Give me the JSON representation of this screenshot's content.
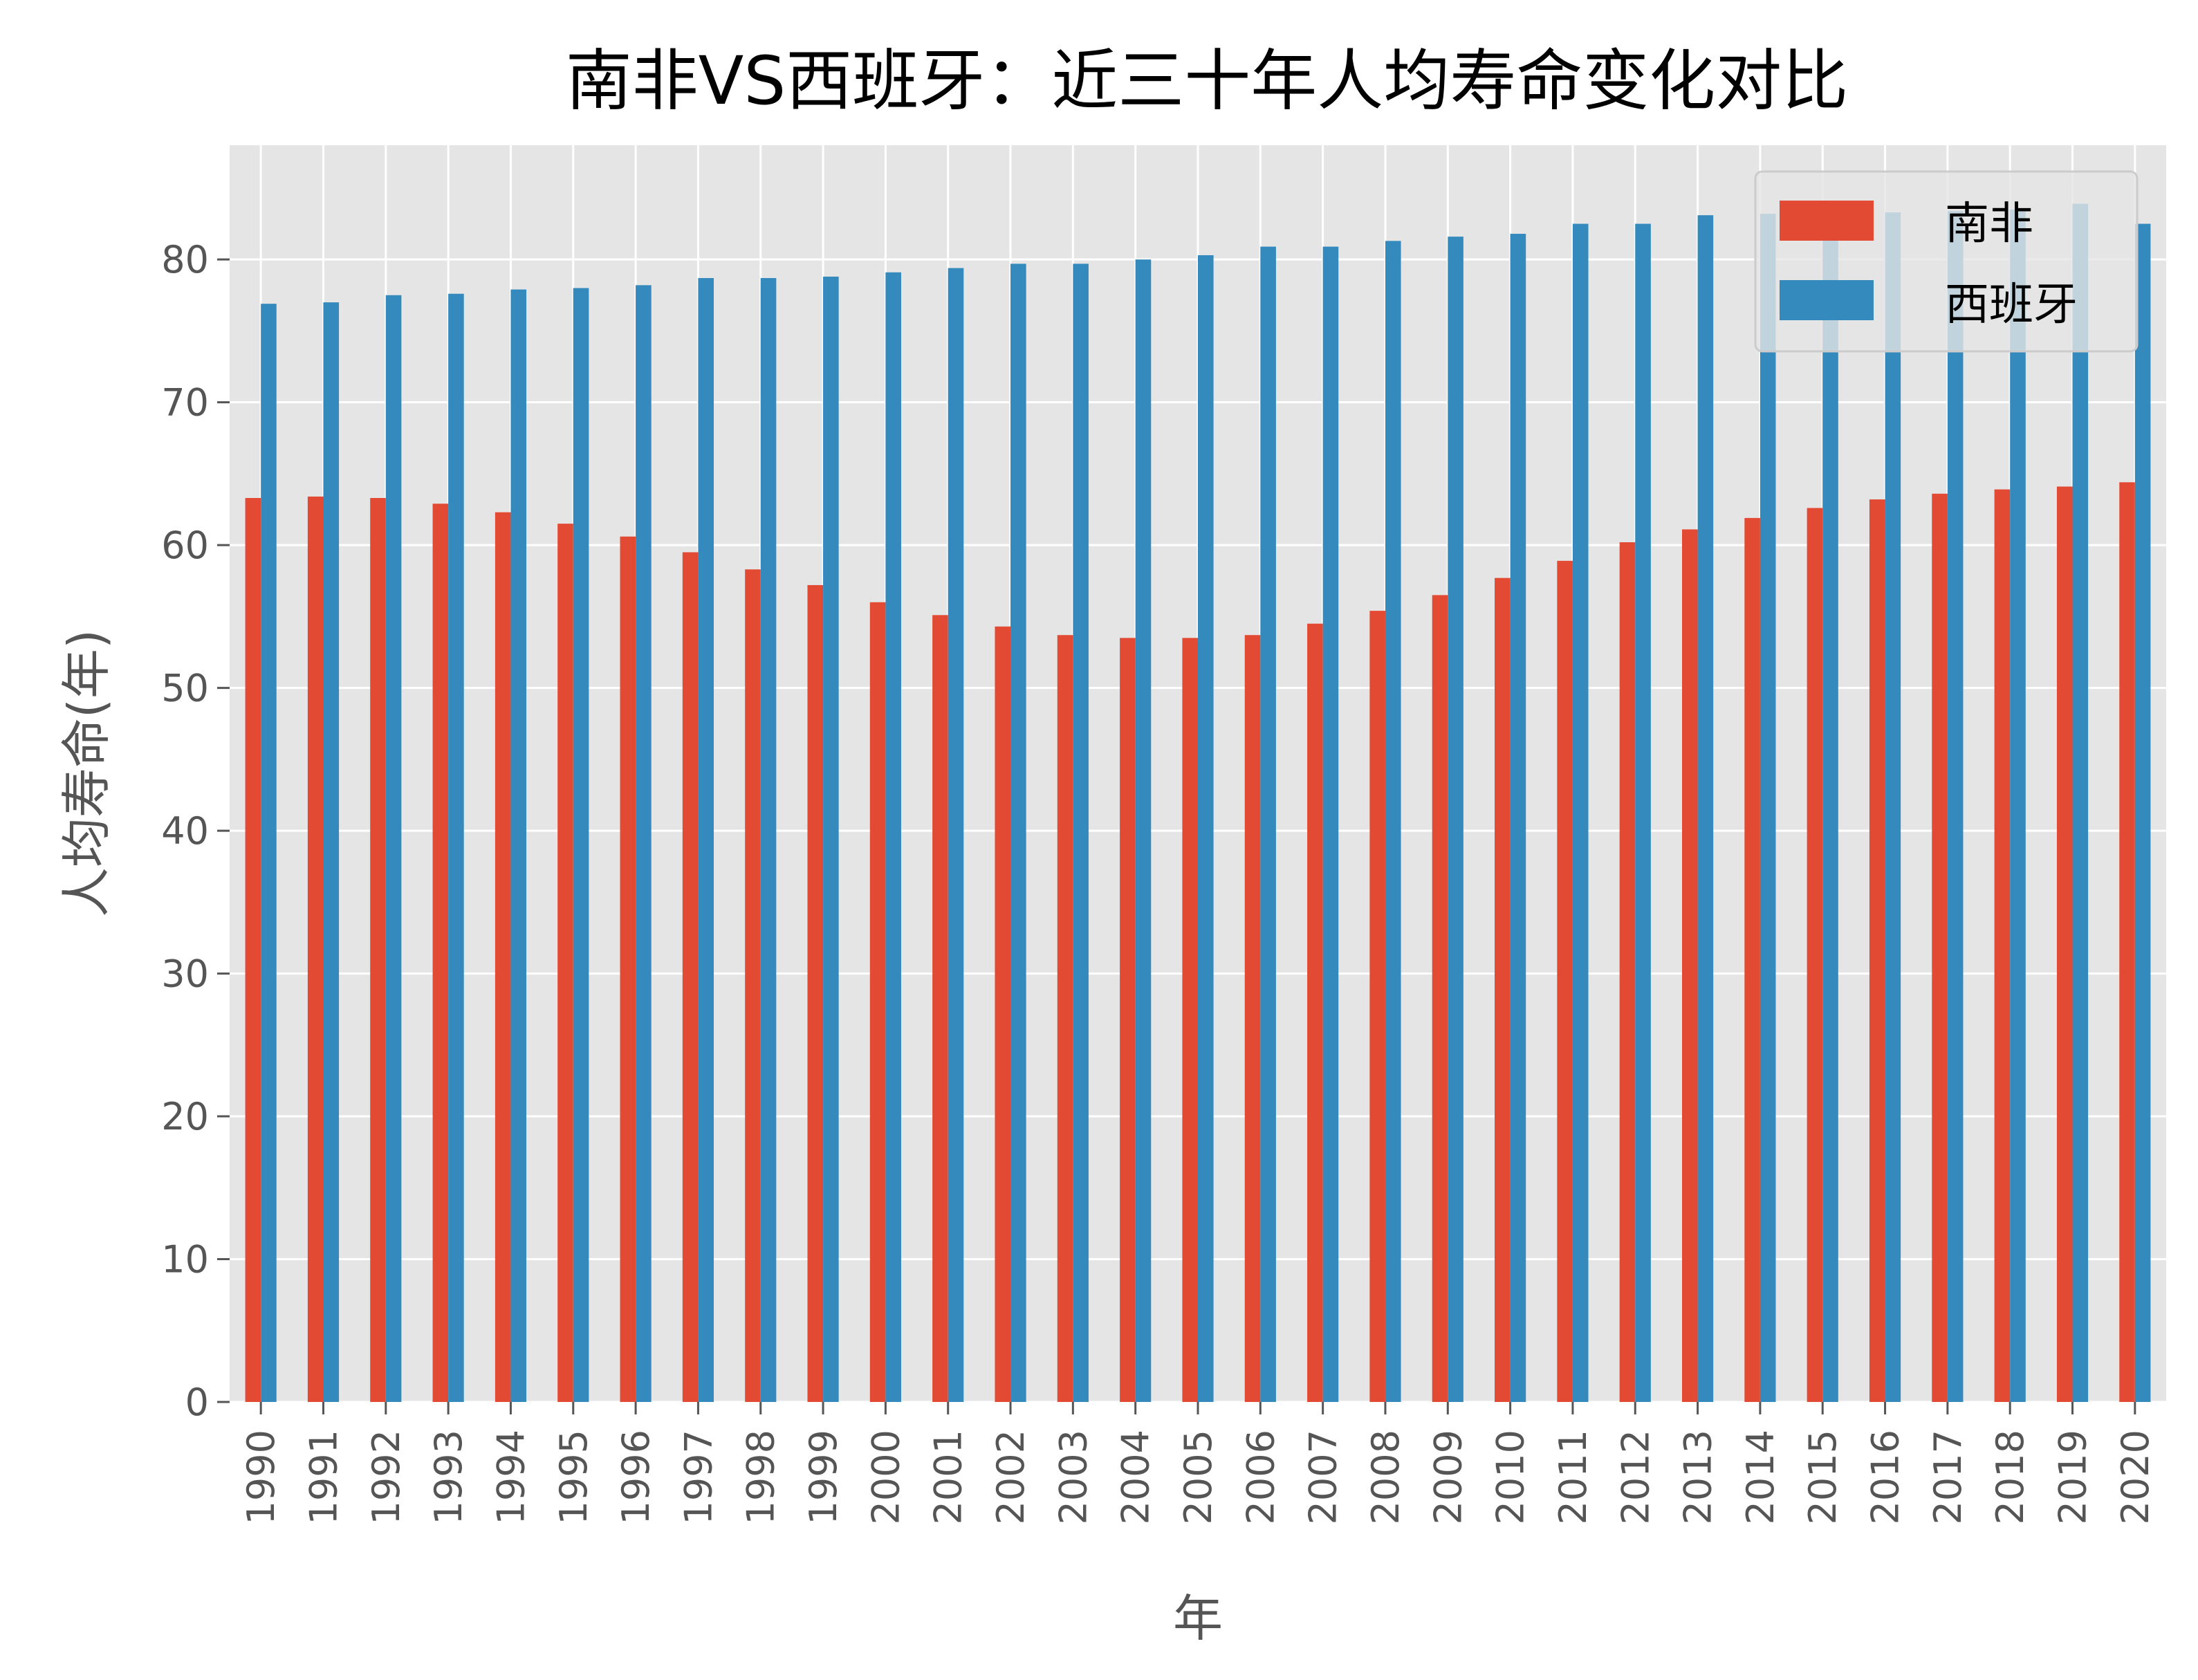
{
  "chart_data": {
    "type": "bar",
    "title": "南非VS西班牙：近三十年人均寿命变化对比",
    "xlabel": "年",
    "ylabel": "人均寿命(年)",
    "ylim": [
      0,
      88
    ],
    "yticks": [
      0,
      10,
      20,
      30,
      40,
      50,
      60,
      70,
      80
    ],
    "grid": true,
    "legend_position": "top-right",
    "categories": [
      "1990",
      "1991",
      "1992",
      "1993",
      "1994",
      "1995",
      "1996",
      "1997",
      "1998",
      "1999",
      "2000",
      "2001",
      "2002",
      "2003",
      "2004",
      "2005",
      "2006",
      "2007",
      "2008",
      "2009",
      "2010",
      "2011",
      "2012",
      "2013",
      "2014",
      "2015",
      "2016",
      "2017",
      "2018",
      "2019",
      "2020"
    ],
    "series": [
      {
        "name": "南非",
        "color": "#E24A33",
        "values": [
          63.3,
          63.4,
          63.3,
          62.9,
          62.3,
          61.5,
          60.6,
          59.5,
          58.3,
          57.2,
          56.0,
          55.1,
          54.3,
          53.7,
          53.5,
          53.5,
          53.7,
          54.5,
          55.4,
          56.5,
          57.7,
          58.9,
          60.2,
          61.1,
          61.9,
          62.6,
          63.2,
          63.6,
          63.9,
          64.1,
          64.4
        ]
      },
      {
        "name": "西班牙",
        "color": "#348ABD",
        "values": [
          76.9,
          77.0,
          77.5,
          77.6,
          77.9,
          78.0,
          78.2,
          78.7,
          78.7,
          78.8,
          79.1,
          79.4,
          79.7,
          79.7,
          80.0,
          80.3,
          80.9,
          80.9,
          81.3,
          81.6,
          81.8,
          82.5,
          82.5,
          83.1,
          83.2,
          83.0,
          83.3,
          83.4,
          83.5,
          83.9,
          82.5
        ]
      }
    ]
  }
}
